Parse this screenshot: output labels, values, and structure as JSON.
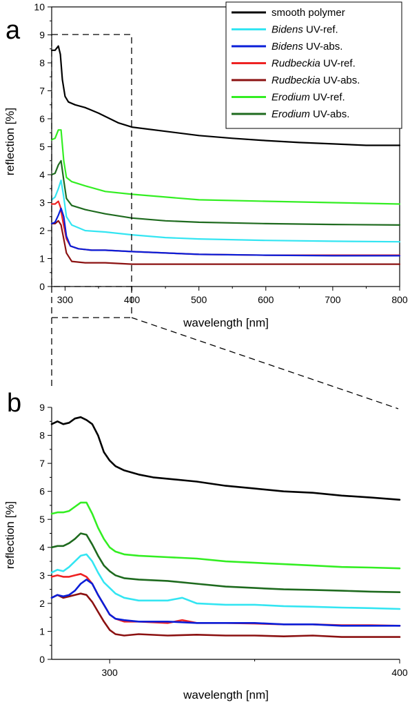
{
  "chart_data": [
    {
      "panel": "a",
      "type": "line",
      "xlabel": "wavelength [nm]",
      "ylabel": "reflection [%]",
      "xlim": [
        280,
        800
      ],
      "ylim": [
        0,
        10
      ],
      "xticks": [
        300,
        400,
        500,
        600,
        700,
        800
      ],
      "yticks": [
        0,
        1,
        2,
        3,
        4,
        5,
        6,
        7,
        8,
        9,
        10
      ],
      "legend_position": "top-right",
      "series": [
        {
          "name": "smooth polymer",
          "color": "#000000",
          "x": [
            280,
            285,
            290,
            293,
            296,
            300,
            305,
            315,
            330,
            350,
            380,
            400,
            450,
            500,
            550,
            600,
            650,
            700,
            750,
            800
          ],
          "y": [
            8.45,
            8.45,
            8.6,
            8.3,
            7.4,
            6.8,
            6.6,
            6.5,
            6.4,
            6.2,
            5.85,
            5.7,
            5.55,
            5.4,
            5.3,
            5.22,
            5.15,
            5.1,
            5.05,
            5.05
          ]
        },
        {
          "name": "Bidens UV-ref.",
          "color": "#33e5f2",
          "x": [
            280,
            285,
            290,
            294,
            298,
            302,
            310,
            320,
            330,
            360,
            400,
            450,
            500,
            600,
            700,
            800
          ],
          "y": [
            3.1,
            3.2,
            3.5,
            3.8,
            3.2,
            2.5,
            2.2,
            2.1,
            2.0,
            1.95,
            1.85,
            1.75,
            1.7,
            1.65,
            1.62,
            1.6
          ]
        },
        {
          "name": "Bidens UV-abs.",
          "color": "#0a1ed8",
          "x": [
            280,
            285,
            290,
            294,
            298,
            302,
            308,
            320,
            340,
            360,
            400,
            450,
            500,
            600,
            700,
            800
          ],
          "y": [
            2.25,
            2.3,
            2.55,
            2.8,
            2.5,
            1.8,
            1.45,
            1.35,
            1.3,
            1.3,
            1.25,
            1.2,
            1.15,
            1.12,
            1.1,
            1.1
          ]
        },
        {
          "name": "Rudbeckia UV-ref.",
          "color": "#ee2222",
          "x": [
            280,
            285,
            290,
            293,
            297,
            302,
            308,
            320,
            340,
            360,
            400,
            450,
            500,
            600,
            700,
            800
          ],
          "y": [
            2.95,
            2.95,
            3.05,
            2.85,
            2.3,
            1.7,
            1.45,
            1.35,
            1.3,
            1.3,
            1.25,
            1.2,
            1.15,
            1.12,
            1.12,
            1.12
          ]
        },
        {
          "name": "Rudbeckia UV-abs.",
          "color": "#8b1111",
          "x": [
            280,
            285,
            290,
            294,
            298,
            302,
            310,
            330,
            360,
            400,
            450,
            500,
            600,
            700,
            800
          ],
          "y": [
            2.25,
            2.25,
            2.35,
            2.2,
            1.7,
            1.2,
            0.9,
            0.85,
            0.85,
            0.8,
            0.8,
            0.8,
            0.8,
            0.8,
            0.8
          ]
        },
        {
          "name": "Erodium UV-ref.",
          "color": "#33ee22",
          "x": [
            280,
            285,
            290,
            294,
            298,
            302,
            310,
            330,
            360,
            400,
            450,
            500,
            600,
            700,
            800
          ],
          "y": [
            5.25,
            5.3,
            5.6,
            5.6,
            4.5,
            3.9,
            3.75,
            3.6,
            3.4,
            3.3,
            3.2,
            3.1,
            3.05,
            3.0,
            2.95
          ]
        },
        {
          "name": "Erodium UV-abs.",
          "color": "#1e6a1e",
          "x": [
            280,
            285,
            290,
            294,
            298,
            302,
            310,
            330,
            360,
            400,
            450,
            500,
            600,
            700,
            800
          ],
          "y": [
            4.0,
            4.05,
            4.35,
            4.5,
            3.8,
            3.15,
            2.9,
            2.75,
            2.6,
            2.45,
            2.35,
            2.3,
            2.25,
            2.22,
            2.2
          ]
        }
      ]
    },
    {
      "panel": "b",
      "type": "line",
      "xlabel": "wavelength [nm]",
      "ylabel": "reflection [%]",
      "xlim": [
        280,
        400
      ],
      "ylim": [
        0,
        9
      ],
      "xticks": [
        300,
        400
      ],
      "yticks": [
        0,
        1,
        2,
        3,
        4,
        5,
        6,
        7,
        8,
        9
      ],
      "series": [
        {
          "name": "smooth polymer",
          "color": "#000000",
          "x": [
            280,
            282,
            284,
            286,
            288,
            290,
            292,
            294,
            296,
            298,
            300,
            302,
            305,
            310,
            315,
            320,
            330,
            340,
            350,
            360,
            370,
            380,
            390,
            400
          ],
          "y": [
            8.4,
            8.5,
            8.4,
            8.45,
            8.6,
            8.65,
            8.55,
            8.4,
            8.0,
            7.4,
            7.1,
            6.9,
            6.75,
            6.6,
            6.5,
            6.45,
            6.35,
            6.2,
            6.1,
            6.0,
            5.95,
            5.85,
            5.78,
            5.7
          ]
        },
        {
          "name": "Bidens UV-ref.",
          "color": "#33e5f2",
          "x": [
            280,
            282,
            284,
            286,
            288,
            290,
            292,
            294,
            296,
            298,
            300,
            302,
            305,
            310,
            320,
            325,
            330,
            340,
            350,
            360,
            370,
            380,
            390,
            400
          ],
          "y": [
            3.1,
            3.2,
            3.15,
            3.3,
            3.5,
            3.7,
            3.75,
            3.5,
            3.1,
            2.75,
            2.55,
            2.35,
            2.2,
            2.1,
            2.1,
            2.2,
            2.0,
            1.95,
            1.95,
            1.9,
            1.88,
            1.85,
            1.83,
            1.8
          ]
        },
        {
          "name": "Bidens UV-abs.",
          "color": "#0a1ed8",
          "x": [
            280,
            282,
            284,
            286,
            288,
            290,
            292,
            294,
            296,
            298,
            300,
            302,
            305,
            310,
            320,
            330,
            340,
            350,
            360,
            370,
            380,
            390,
            400
          ],
          "y": [
            2.2,
            2.3,
            2.25,
            2.3,
            2.45,
            2.7,
            2.85,
            2.7,
            2.3,
            1.95,
            1.6,
            1.45,
            1.4,
            1.35,
            1.35,
            1.3,
            1.3,
            1.3,
            1.25,
            1.25,
            1.2,
            1.2,
            1.2
          ]
        },
        {
          "name": "Rudbeckia UV-ref.",
          "color": "#ee2222",
          "x": [
            280,
            282,
            284,
            286,
            288,
            290,
            292,
            294,
            296,
            298,
            300,
            302,
            305,
            310,
            320,
            325,
            330,
            340,
            350,
            360,
            370,
            380,
            390,
            400
          ],
          "y": [
            2.95,
            3.0,
            2.95,
            2.95,
            3.0,
            3.05,
            2.95,
            2.7,
            2.3,
            1.95,
            1.6,
            1.45,
            1.35,
            1.35,
            1.3,
            1.4,
            1.3,
            1.3,
            1.28,
            1.25,
            1.25,
            1.22,
            1.22,
            1.2
          ]
        },
        {
          "name": "Rudbeckia UV-abs.",
          "color": "#8b1111",
          "x": [
            280,
            282,
            284,
            286,
            288,
            290,
            292,
            294,
            296,
            298,
            300,
            302,
            305,
            310,
            320,
            330,
            340,
            350,
            360,
            370,
            380,
            390,
            400
          ],
          "y": [
            2.2,
            2.3,
            2.2,
            2.25,
            2.3,
            2.35,
            2.3,
            2.05,
            1.7,
            1.35,
            1.05,
            0.9,
            0.85,
            0.9,
            0.85,
            0.88,
            0.85,
            0.85,
            0.82,
            0.85,
            0.8,
            0.8,
            0.8
          ]
        },
        {
          "name": "Erodium UV-ref.",
          "color": "#33ee22",
          "x": [
            280,
            282,
            284,
            286,
            288,
            290,
            292,
            294,
            296,
            298,
            300,
            302,
            305,
            310,
            320,
            330,
            340,
            350,
            360,
            370,
            380,
            390,
            400
          ],
          "y": [
            5.2,
            5.25,
            5.25,
            5.3,
            5.45,
            5.6,
            5.6,
            5.2,
            4.7,
            4.3,
            4.0,
            3.85,
            3.75,
            3.7,
            3.65,
            3.6,
            3.5,
            3.45,
            3.4,
            3.35,
            3.3,
            3.28,
            3.25
          ]
        },
        {
          "name": "Erodium UV-abs.",
          "color": "#1e6a1e",
          "x": [
            280,
            282,
            284,
            286,
            288,
            290,
            292,
            294,
            296,
            298,
            300,
            302,
            305,
            310,
            320,
            330,
            340,
            350,
            360,
            370,
            380,
            390,
            400
          ],
          "y": [
            4.0,
            4.05,
            4.05,
            4.15,
            4.3,
            4.5,
            4.45,
            4.1,
            3.7,
            3.35,
            3.15,
            3.0,
            2.9,
            2.85,
            2.8,
            2.7,
            2.6,
            2.55,
            2.5,
            2.48,
            2.45,
            2.42,
            2.4
          ]
        }
      ]
    }
  ],
  "legend": {
    "entries": [
      {
        "italic": "",
        "text": "smooth polymer",
        "color": "#000000"
      },
      {
        "italic": "Bidens",
        "text": " UV-ref.",
        "color": "#33e5f2"
      },
      {
        "italic": "Bidens",
        "text": " UV-abs.",
        "color": "#0a1ed8"
      },
      {
        "italic": "Rudbeckia",
        "text": " UV-ref.",
        "color": "#ee2222"
      },
      {
        "italic": "Rudbeckia",
        "text": " UV-abs.",
        "color": "#8b1111"
      },
      {
        "italic": "Erodium",
        "text": " UV-ref.",
        "color": "#33ee22"
      },
      {
        "italic": "Erodium",
        "text": " UV-abs.",
        "color": "#1e6a1e"
      }
    ]
  },
  "labels": {
    "panel_a": "a",
    "panel_b": "b",
    "a_xlabel": "wavelength [nm]",
    "a_ylabel": "reflection [%]",
    "b_xlabel": "wavelength [nm]",
    "b_ylabel": "reflection [%]"
  }
}
